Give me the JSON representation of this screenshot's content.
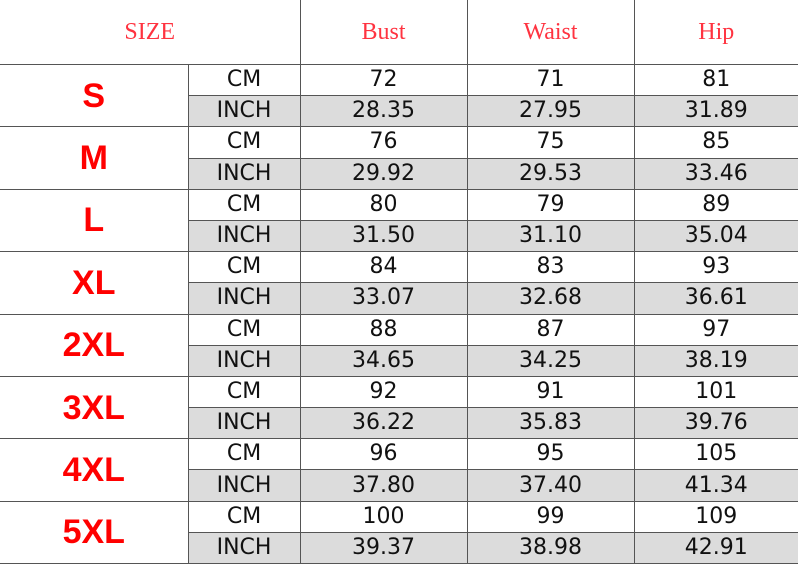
{
  "header": {
    "size": "SIZE",
    "bust": "Bust",
    "waist": "Waist",
    "hip": "Hip"
  },
  "units": {
    "cm": "CM",
    "inch": "INCH"
  },
  "colors": {
    "header_text": "#ff3340",
    "size_text": "#ff0000",
    "inch_row_bg": "#dcdcdc"
  },
  "rows": [
    {
      "size": "S",
      "cm": [
        "72",
        "71",
        "81"
      ],
      "inch": [
        "28.35",
        "27.95",
        "31.89"
      ]
    },
    {
      "size": "M",
      "cm": [
        "76",
        "75",
        "85"
      ],
      "inch": [
        "29.92",
        "29.53",
        "33.46"
      ]
    },
    {
      "size": "L",
      "cm": [
        "80",
        "79",
        "89"
      ],
      "inch": [
        "31.50",
        "31.10",
        "35.04"
      ]
    },
    {
      "size": "XL",
      "cm": [
        "84",
        "83",
        "93"
      ],
      "inch": [
        "33.07",
        "32.68",
        "36.61"
      ]
    },
    {
      "size": "2XL",
      "cm": [
        "88",
        "87",
        "97"
      ],
      "inch": [
        "34.65",
        "34.25",
        "38.19"
      ]
    },
    {
      "size": "3XL",
      "cm": [
        "92",
        "91",
        "101"
      ],
      "inch": [
        "36.22",
        "35.83",
        "39.76"
      ]
    },
    {
      "size": "4XL",
      "cm": [
        "96",
        "95",
        "105"
      ],
      "inch": [
        "37.80",
        "37.40",
        "41.34"
      ]
    },
    {
      "size": "5XL",
      "cm": [
        "100",
        "99",
        "109"
      ],
      "inch": [
        "39.37",
        "38.98",
        "42.91"
      ]
    }
  ]
}
